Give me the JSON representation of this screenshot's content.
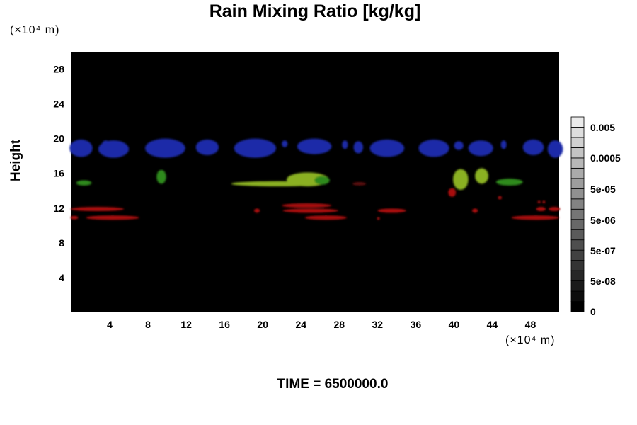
{
  "chart_data": {
    "type": "heatmap",
    "title": "Rain Mixing Ratio [kg/kg]",
    "xlabel": "",
    "ylabel": "Height",
    "x_unit": "(×10⁴ m)",
    "y_unit": "(×10⁴ m)",
    "footer": "TIME = 6500000.0",
    "xlim": [
      0,
      51
    ],
    "ylim": [
      0,
      30
    ],
    "xticks": [
      "4",
      "8",
      "12",
      "16",
      "20",
      "24",
      "28",
      "32",
      "36",
      "40",
      "44",
      "48"
    ],
    "yticks": [
      "4",
      "8",
      "12",
      "16",
      "20",
      "24",
      "28"
    ],
    "colorbar": {
      "levels": 19,
      "labels": [
        "0.005",
        "0.0005",
        "5e-05",
        "5e-06",
        "5e-07",
        "5e-08",
        "0"
      ]
    },
    "features": [
      {
        "kind": "blue",
        "cx": 1.0,
        "cy": 18.9,
        "rx": 1.2,
        "ry": 1.0
      },
      {
        "kind": "blue",
        "cx": 4.4,
        "cy": 18.8,
        "rx": 1.6,
        "ry": 1.0
      },
      {
        "kind": "blue",
        "cx": 3.6,
        "cy": 19.3,
        "rx": 0.4,
        "ry": 0.5
      },
      {
        "kind": "blue",
        "cx": 9.8,
        "cy": 18.9,
        "rx": 2.1,
        "ry": 1.1
      },
      {
        "kind": "blue",
        "cx": 14.2,
        "cy": 19.0,
        "rx": 1.2,
        "ry": 0.9
      },
      {
        "kind": "blue",
        "cx": 19.2,
        "cy": 18.9,
        "rx": 2.2,
        "ry": 1.1
      },
      {
        "kind": "blue",
        "cx": 22.3,
        "cy": 19.4,
        "rx": 0.3,
        "ry": 0.4
      },
      {
        "kind": "blue",
        "cx": 25.4,
        "cy": 19.1,
        "rx": 1.8,
        "ry": 0.9
      },
      {
        "kind": "blue",
        "cx": 28.6,
        "cy": 19.3,
        "rx": 0.3,
        "ry": 0.5
      },
      {
        "kind": "blue",
        "cx": 30.0,
        "cy": 19.0,
        "rx": 0.5,
        "ry": 0.7
      },
      {
        "kind": "blue",
        "cx": 33.0,
        "cy": 18.9,
        "rx": 1.8,
        "ry": 1.0
      },
      {
        "kind": "blue",
        "cx": 37.9,
        "cy": 18.9,
        "rx": 1.6,
        "ry": 1.0
      },
      {
        "kind": "blue",
        "cx": 40.5,
        "cy": 19.2,
        "rx": 0.5,
        "ry": 0.5
      },
      {
        "kind": "blue",
        "cx": 42.8,
        "cy": 18.9,
        "rx": 1.3,
        "ry": 0.9
      },
      {
        "kind": "blue",
        "cx": 45.2,
        "cy": 19.3,
        "rx": 0.3,
        "ry": 0.5
      },
      {
        "kind": "blue",
        "cx": 48.3,
        "cy": 19.0,
        "rx": 1.1,
        "ry": 0.9
      },
      {
        "kind": "blue",
        "cx": 50.6,
        "cy": 18.8,
        "rx": 0.8,
        "ry": 1.0
      },
      {
        "kind": "green",
        "cx": 1.3,
        "cy": 14.9,
        "rx": 0.8,
        "ry": 0.3
      },
      {
        "kind": "green",
        "cx": 9.4,
        "cy": 15.6,
        "rx": 0.5,
        "ry": 0.8
      },
      {
        "kind": "yellow",
        "cx": 21.6,
        "cy": 14.8,
        "rx": 4.9,
        "ry": 0.3
      },
      {
        "kind": "yellow",
        "cx": 24.7,
        "cy": 15.3,
        "rx": 2.2,
        "ry": 0.8
      },
      {
        "kind": "green",
        "cx": 26.2,
        "cy": 15.2,
        "rx": 0.8,
        "ry": 0.5
      },
      {
        "kind": "yellow",
        "cx": 40.7,
        "cy": 15.3,
        "rx": 0.8,
        "ry": 1.2
      },
      {
        "kind": "yellow",
        "cx": 42.9,
        "cy": 15.7,
        "rx": 0.7,
        "ry": 0.9
      },
      {
        "kind": "green",
        "cx": 45.8,
        "cy": 15.0,
        "rx": 1.4,
        "ry": 0.4
      },
      {
        "kind": "red",
        "cx": 2.7,
        "cy": 11.9,
        "rx": 2.8,
        "ry": 0.25
      },
      {
        "kind": "red",
        "cx": 4.3,
        "cy": 10.9,
        "rx": 2.8,
        "ry": 0.25
      },
      {
        "kind": "red",
        "cx": 0.3,
        "cy": 10.9,
        "rx": 0.4,
        "ry": 0.2
      },
      {
        "kind": "red",
        "cx": 24.6,
        "cy": 12.3,
        "rx": 2.6,
        "ry": 0.25
      },
      {
        "kind": "red",
        "cx": 25.0,
        "cy": 11.7,
        "rx": 2.9,
        "ry": 0.25
      },
      {
        "kind": "red",
        "cx": 26.6,
        "cy": 10.9,
        "rx": 2.2,
        "ry": 0.25
      },
      {
        "kind": "red",
        "cx": 33.5,
        "cy": 11.7,
        "rx": 1.5,
        "ry": 0.25
      },
      {
        "kind": "red",
        "cx": 19.4,
        "cy": 11.7,
        "rx": 0.3,
        "ry": 0.25
      },
      {
        "kind": "red",
        "cx": 32.1,
        "cy": 10.8,
        "rx": 0.15,
        "ry": 0.15
      },
      {
        "kind": "darkred",
        "cx": 30.1,
        "cy": 14.8,
        "rx": 0.7,
        "ry": 0.2
      },
      {
        "kind": "red",
        "cx": 39.8,
        "cy": 13.8,
        "rx": 0.4,
        "ry": 0.5
      },
      {
        "kind": "red",
        "cx": 42.2,
        "cy": 11.7,
        "rx": 0.3,
        "ry": 0.25
      },
      {
        "kind": "red",
        "cx": 44.8,
        "cy": 13.2,
        "rx": 0.2,
        "ry": 0.2
      },
      {
        "kind": "red",
        "cx": 48.5,
        "cy": 10.9,
        "rx": 2.5,
        "ry": 0.25
      },
      {
        "kind": "red",
        "cx": 49.1,
        "cy": 11.9,
        "rx": 0.5,
        "ry": 0.25
      },
      {
        "kind": "red",
        "cx": 50.5,
        "cy": 11.9,
        "rx": 0.6,
        "ry": 0.25
      },
      {
        "kind": "red",
        "cx": 48.9,
        "cy": 12.7,
        "rx": 0.15,
        "ry": 0.15
      },
      {
        "kind": "red",
        "cx": 49.4,
        "cy": 12.7,
        "rx": 0.15,
        "ry": 0.15
      }
    ],
    "colors": {
      "blue": "#1a2aa8",
      "green": "#2f8a1c",
      "yellow": "#8ab020",
      "red": "#a81010",
      "darkred": "#5a0a0a",
      "background": "#000000"
    }
  }
}
